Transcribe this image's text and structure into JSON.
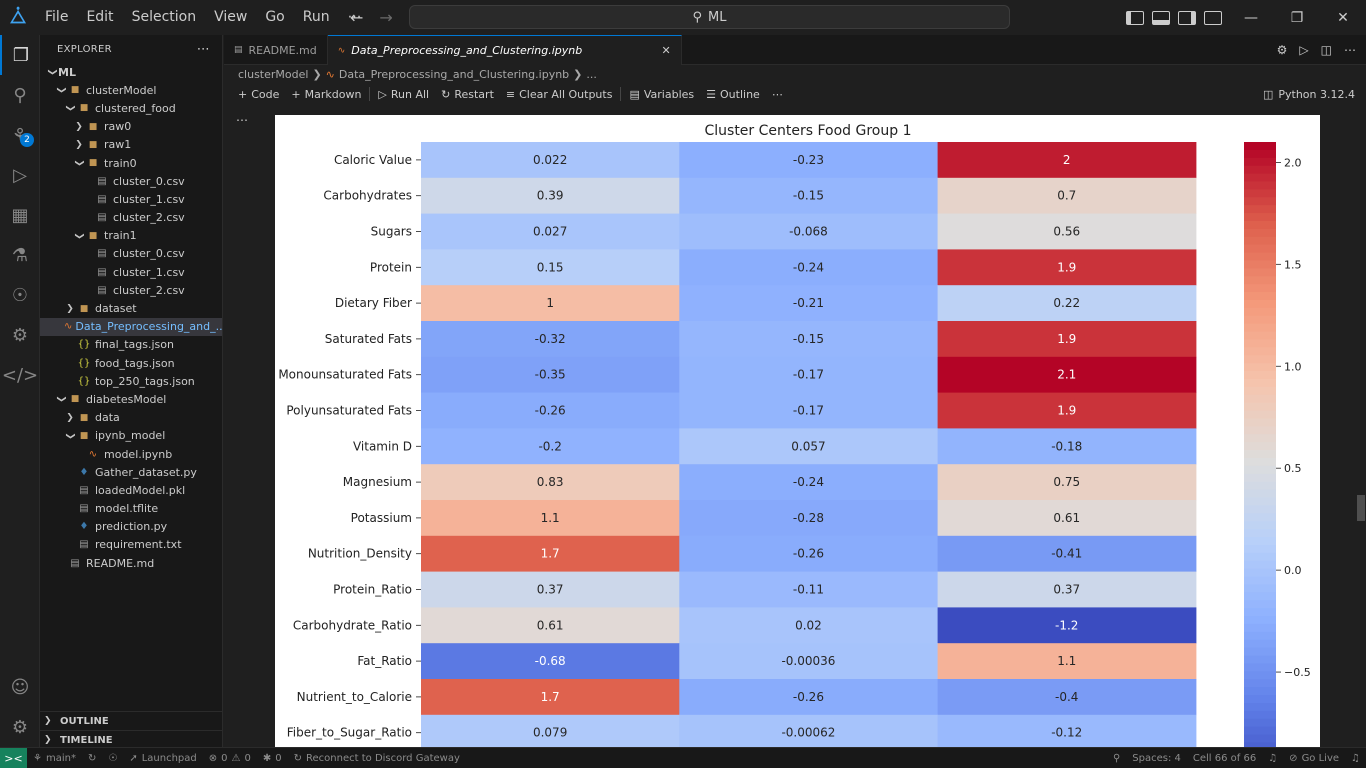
{
  "menu": [
    "File",
    "Edit",
    "Selection",
    "View",
    "Go",
    "Run",
    "⋯"
  ],
  "search": {
    "text": "ML"
  },
  "explorer": {
    "title": "EXPLORER",
    "more": "⋯",
    "tree": [
      {
        "label": "ML",
        "depth": 0,
        "kind": "root",
        "twisty": "open"
      },
      {
        "label": "clusterModel",
        "depth": 1,
        "kind": "folder",
        "twisty": "open"
      },
      {
        "label": "clustered_food",
        "depth": 2,
        "kind": "folder",
        "twisty": "open"
      },
      {
        "label": "raw0",
        "depth": 3,
        "kind": "folder",
        "twisty": "closed"
      },
      {
        "label": "raw1",
        "depth": 3,
        "kind": "folder",
        "twisty": "closed"
      },
      {
        "label": "train0",
        "depth": 3,
        "kind": "folder",
        "twisty": "open"
      },
      {
        "label": "cluster_0.csv",
        "depth": 4,
        "kind": "file"
      },
      {
        "label": "cluster_1.csv",
        "depth": 4,
        "kind": "file"
      },
      {
        "label": "cluster_2.csv",
        "depth": 4,
        "kind": "file"
      },
      {
        "label": "train1",
        "depth": 3,
        "kind": "folder",
        "twisty": "open"
      },
      {
        "label": "cluster_0.csv",
        "depth": 4,
        "kind": "file"
      },
      {
        "label": "cluster_1.csv",
        "depth": 4,
        "kind": "file"
      },
      {
        "label": "cluster_2.csv",
        "depth": 4,
        "kind": "file"
      },
      {
        "label": "dataset",
        "depth": 2,
        "kind": "folder",
        "twisty": "closed"
      },
      {
        "label": "Data_Preprocessing_and_...",
        "depth": 2,
        "kind": "nb",
        "selected": true
      },
      {
        "label": "final_tags.json",
        "depth": 2,
        "kind": "json"
      },
      {
        "label": "food_tags.json",
        "depth": 2,
        "kind": "json"
      },
      {
        "label": "top_250_tags.json",
        "depth": 2,
        "kind": "json"
      },
      {
        "label": "diabetesModel",
        "depth": 1,
        "kind": "folder",
        "twisty": "open"
      },
      {
        "label": "data",
        "depth": 2,
        "kind": "folder",
        "twisty": "closed"
      },
      {
        "label": "ipynb_model",
        "depth": 2,
        "kind": "folder",
        "twisty": "open"
      },
      {
        "label": "model.ipynb",
        "depth": 3,
        "kind": "nb"
      },
      {
        "label": "Gather_dataset.py",
        "depth": 2,
        "kind": "py"
      },
      {
        "label": "loadedModel.pkl",
        "depth": 2,
        "kind": "file"
      },
      {
        "label": "model.tflite",
        "depth": 2,
        "kind": "file"
      },
      {
        "label": "prediction.py",
        "depth": 2,
        "kind": "py"
      },
      {
        "label": "requirement.txt",
        "depth": 2,
        "kind": "file"
      },
      {
        "label": "README.md",
        "depth": 1,
        "kind": "md"
      }
    ],
    "outline": "OUTLINE",
    "timeline": "TIMELINE"
  },
  "tabs": [
    {
      "label": "README.md",
      "active": false
    },
    {
      "label": "Data_Preprocessing_and_Clustering.ipynb",
      "active": true
    }
  ],
  "breadcrumb": [
    "clusterModel",
    "Data_Preprocessing_and_Clustering.ipynb",
    "..."
  ],
  "toolbar": {
    "code": "Code",
    "markdown": "Markdown",
    "run_all": "Run All",
    "restart": "Restart",
    "clear": "Clear All Outputs",
    "variables": "Variables",
    "outline": "Outline",
    "more": "⋯",
    "kernel": "Python 3.12.4"
  },
  "activity_badge": "2",
  "status": {
    "branch": "main*",
    "errors": "0",
    "warnings": "0",
    "launchpad": "Launchpad",
    "ports": "0",
    "discord": "Reconnect to Discord Gateway",
    "spaces": "Spaces: 4",
    "cell": "Cell 66 of 66",
    "golive": "Go Live"
  },
  "chart_data": {
    "type": "heatmap",
    "title": "Cluster Centers Food Group 1",
    "colormap": "coolwarm",
    "vmin": -1.0,
    "vmax": 2.1,
    "rows": [
      "Caloric Value",
      "Carbohydrates",
      "Sugars",
      "Protein",
      "Dietary Fiber",
      "Saturated Fats",
      "Monounsaturated Fats",
      "Polyunsaturated Fats",
      "Vitamin D",
      "Magnesium",
      "Potassium",
      "Nutrition_Density",
      "Protein_Ratio",
      "Carbohydrate_Ratio",
      "Fat_Ratio",
      "Nutrient_to_Calorie",
      "Fiber_to_Sugar_Ratio"
    ],
    "values": [
      [
        0.022,
        -0.23,
        2
      ],
      [
        0.39,
        -0.15,
        0.7
      ],
      [
        0.027,
        -0.068,
        0.56
      ],
      [
        0.15,
        -0.24,
        1.9
      ],
      [
        1,
        -0.21,
        0.22
      ],
      [
        -0.32,
        -0.15,
        1.9
      ],
      [
        -0.35,
        -0.17,
        2.1
      ],
      [
        -0.26,
        -0.17,
        1.9
      ],
      [
        -0.2,
        0.057,
        -0.18
      ],
      [
        0.83,
        -0.24,
        0.75
      ],
      [
        1.1,
        -0.28,
        0.61
      ],
      [
        1.7,
        -0.26,
        -0.41
      ],
      [
        0.37,
        -0.11,
        0.37
      ],
      [
        0.61,
        0.02,
        -1.2
      ],
      [
        -0.68,
        -0.00036,
        1.1
      ],
      [
        1.7,
        -0.26,
        -0.4
      ],
      [
        0.079,
        -0.00062,
        -0.12
      ]
    ],
    "labels": [
      [
        "0.022",
        "-0.23",
        "2"
      ],
      [
        "0.39",
        "-0.15",
        "0.7"
      ],
      [
        "0.027",
        "-0.068",
        "0.56"
      ],
      [
        "0.15",
        "-0.24",
        "1.9"
      ],
      [
        "1",
        "-0.21",
        "0.22"
      ],
      [
        "-0.32",
        "-0.15",
        "1.9"
      ],
      [
        "-0.35",
        "-0.17",
        "2.1"
      ],
      [
        "-0.26",
        "-0.17",
        "1.9"
      ],
      [
        "-0.2",
        "0.057",
        "-0.18"
      ],
      [
        "0.83",
        "-0.24",
        "0.75"
      ],
      [
        "1.1",
        "-0.28",
        "0.61"
      ],
      [
        "1.7",
        "-0.26",
        "-0.41"
      ],
      [
        "0.37",
        "-0.11",
        "0.37"
      ],
      [
        "0.61",
        "0.02",
        "-1.2"
      ],
      [
        "-0.68",
        "-0.00036",
        "1.1"
      ],
      [
        "1.7",
        "-0.26",
        "-0.4"
      ],
      [
        "0.079",
        "-0.00062",
        "-0.12"
      ]
    ],
    "colorbar_ticks": [
      "2.0",
      "1.5",
      "1.0",
      "0.5",
      "0.0",
      "−0.5"
    ],
    "colorbar_tick_values": [
      2.0,
      1.5,
      1.0,
      0.5,
      0.0,
      -0.5
    ]
  }
}
